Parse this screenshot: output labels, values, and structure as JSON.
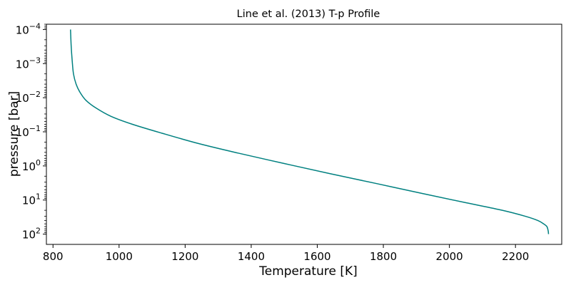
{
  "chart_data": {
    "type": "line",
    "title": "Line et al. (2013) T-p Profile",
    "xlabel": "Temperature [K]",
    "ylabel": "pressure [bar]",
    "xlim": [
      780,
      2340
    ],
    "ylim": [
      200,
      7e-05
    ],
    "yscale": "log",
    "y_inverted": true,
    "grid": false,
    "x_ticks": [
      800,
      1000,
      1200,
      1400,
      1600,
      1800,
      2000,
      2200
    ],
    "x_tick_labels": [
      "800",
      "1000",
      "1200",
      "1400",
      "1600",
      "1800",
      "2000",
      "2200"
    ],
    "y_ticks": [
      0.0001,
      0.001,
      0.01,
      0.1,
      1,
      10,
      100
    ],
    "y_tick_labels": [
      {
        "base": "10",
        "exp": "−4"
      },
      {
        "base": "10",
        "exp": "−3"
      },
      {
        "base": "10",
        "exp": "−2"
      },
      {
        "base": "10",
        "exp": "−1"
      },
      {
        "base": "10",
        "exp": "0"
      },
      {
        "base": "10",
        "exp": "1"
      },
      {
        "base": "10",
        "exp": "2"
      }
    ],
    "series": [
      {
        "color": "#008080",
        "x": [
          853,
          855,
          858,
          862,
          870,
          882,
          900,
          930,
          975,
          1040,
          1130,
          1240,
          1360,
          1500,
          1640,
          1780,
          1920,
          2050,
          2160,
          2230,
          2268,
          2285,
          2295,
          2299,
          2300
        ],
        "y": [
          0.0001,
          0.0003,
          0.0008,
          0.002,
          0.004,
          0.007,
          0.012,
          0.02,
          0.035,
          0.06,
          0.11,
          0.22,
          0.42,
          0.85,
          1.7,
          3.3,
          6.5,
          12,
          20,
          30,
          40,
          50,
          60,
          80,
          100
        ]
      }
    ]
  }
}
